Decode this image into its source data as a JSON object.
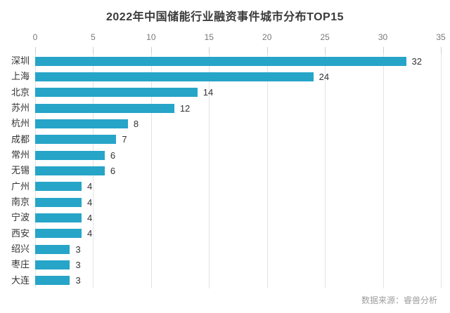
{
  "page": {
    "title": "2022年中国储能行业融资事件城市分布TOP15",
    "source_note": "数据来源：睿兽分析"
  },
  "chart_data": {
    "type": "bar",
    "orientation": "horizontal",
    "title": "2022年中国储能行业融资事件城市分布TOP15",
    "categories": [
      "深圳",
      "上海",
      "北京",
      "苏州",
      "杭州",
      "成都",
      "常州",
      "无锡",
      "广州",
      "南京",
      "宁波",
      "西安",
      "绍兴",
      "枣庄",
      "大连"
    ],
    "values": [
      32,
      24,
      14,
      12,
      8,
      7,
      6,
      6,
      4,
      4,
      4,
      4,
      3,
      3,
      3
    ],
    "xlabel": "",
    "ylabel": "",
    "xlim": [
      0,
      35
    ],
    "x_ticks": [
      0,
      5,
      10,
      15,
      20,
      25,
      30,
      35
    ],
    "x_axis_position": "top",
    "grid": true,
    "legend": false,
    "value_labels": true,
    "source_note": "数据来源：睿兽分析"
  },
  "styles": {
    "bar_color": "#26a5c8",
    "grid_color": "#e3e3e3",
    "tick_color": "#cfcfcf",
    "axis_text_color": "#787878",
    "label_text_color": "#333333",
    "title_text_color": "#3a3a3a",
    "source_text_color": "#9e9e9e",
    "background": "#ffffff"
  }
}
